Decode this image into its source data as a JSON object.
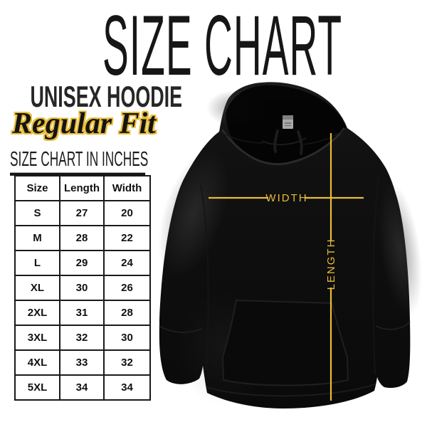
{
  "title": "SIZE CHART",
  "product": {
    "name": "UNISEX HOODIE",
    "fit": "Regular Fit"
  },
  "table_heading": "SIZE CHART IN INCHES",
  "size_table": {
    "columns": [
      "Size",
      "Length",
      "Width"
    ],
    "rows": [
      [
        "S",
        "27",
        "20"
      ],
      [
        "M",
        "28",
        "22"
      ],
      [
        "L",
        "29",
        "24"
      ],
      [
        "XL",
        "30",
        "26"
      ],
      [
        "2XL",
        "31",
        "28"
      ],
      [
        "3XL",
        "32",
        "30"
      ],
      [
        "4XL",
        "33",
        "32"
      ],
      [
        "5XL",
        "34",
        "34"
      ]
    ]
  },
  "measurement_labels": {
    "width": "WIDTH",
    "length": "LENGTH"
  },
  "colors": {
    "accent_gold": "#E8BD38",
    "ink": "#1A1A1A",
    "hoodie_black": "#0D0D0D",
    "background": "#FFFFFF"
  }
}
